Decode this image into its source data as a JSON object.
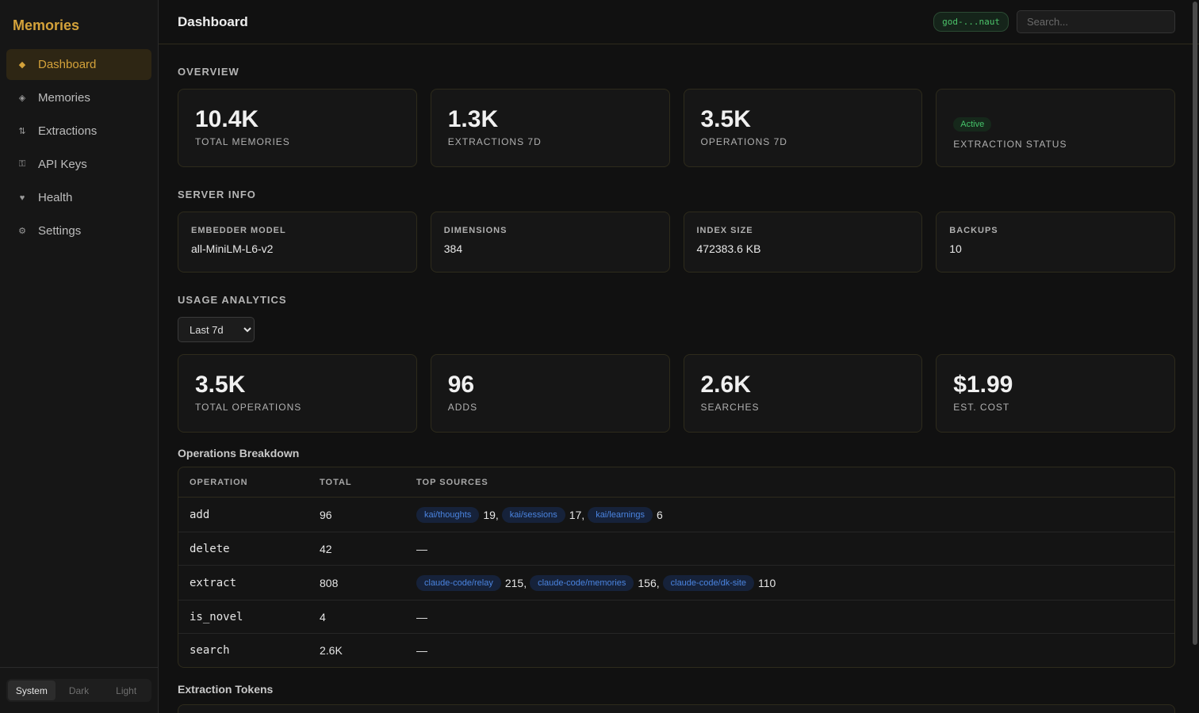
{
  "app": {
    "title": "Memories"
  },
  "sidebar": {
    "items": [
      {
        "label": "Dashboard",
        "icon": "diamond-filled-icon",
        "glyph": "◆"
      },
      {
        "label": "Memories",
        "icon": "diamond-outline-icon",
        "glyph": "◈"
      },
      {
        "label": "Extractions",
        "icon": "arrows-up-down-icon",
        "glyph": "⇅"
      },
      {
        "label": "API Keys",
        "icon": "key-icon",
        "glyph": "⚿"
      },
      {
        "label": "Health",
        "icon": "heart-icon",
        "glyph": "♥"
      },
      {
        "label": "Settings",
        "icon": "gear-icon",
        "glyph": "⚙"
      }
    ],
    "active_index": 0
  },
  "theme": {
    "options": [
      "System",
      "Dark",
      "Light"
    ],
    "selected": "System"
  },
  "header": {
    "title": "Dashboard",
    "api_key_badge": "god-...naut",
    "search_placeholder": "Search..."
  },
  "overview": {
    "title": "OVERVIEW",
    "cards": [
      {
        "value": "10.4K",
        "label": "TOTAL MEMORIES"
      },
      {
        "value": "1.3K",
        "label": "EXTRACTIONS 7D"
      },
      {
        "value": "3.5K",
        "label": "OPERATIONS 7D"
      },
      {
        "badge": "Active",
        "label": "EXTRACTION STATUS"
      }
    ]
  },
  "server_info": {
    "title": "SERVER INFO",
    "cards": [
      {
        "label": "EMBEDDER MODEL",
        "value": "all-MiniLM-L6-v2"
      },
      {
        "label": "DIMENSIONS",
        "value": "384"
      },
      {
        "label": "INDEX SIZE",
        "value": "472383.6 KB"
      },
      {
        "label": "BACKUPS",
        "value": "10"
      }
    ]
  },
  "usage": {
    "title": "USAGE ANALYTICS",
    "range_options": [
      "Last 7d"
    ],
    "range_selected": "Last 7d",
    "cards": [
      {
        "value": "3.5K",
        "label": "TOTAL OPERATIONS"
      },
      {
        "value": "96",
        "label": "ADDS"
      },
      {
        "value": "2.6K",
        "label": "SEARCHES"
      },
      {
        "value": "$1.99",
        "label": "EST. COST"
      }
    ]
  },
  "breakdown": {
    "title": "Operations Breakdown",
    "columns": [
      "OPERATION",
      "TOTAL",
      "TOP SOURCES"
    ],
    "rows": [
      {
        "operation": "add",
        "total": "96",
        "sources": [
          {
            "name": "kai/thoughts",
            "count": "19,"
          },
          {
            "name": "kai/sessions",
            "count": "17,"
          },
          {
            "name": "kai/learnings",
            "count": "6"
          }
        ]
      },
      {
        "operation": "delete",
        "total": "42",
        "sources": [],
        "empty": "—"
      },
      {
        "operation": "extract",
        "total": "808",
        "sources": [
          {
            "name": "claude-code/relay",
            "count": "215,"
          },
          {
            "name": "claude-code/memories",
            "count": "156,"
          },
          {
            "name": "claude-code/dk-site",
            "count": "110"
          }
        ]
      },
      {
        "operation": "is_novel",
        "total": "4",
        "sources": [],
        "empty": "—"
      },
      {
        "operation": "search",
        "total": "2.6K",
        "sources": [],
        "empty": "—"
      }
    ]
  },
  "extraction_tokens": {
    "title": "Extraction Tokens"
  }
}
